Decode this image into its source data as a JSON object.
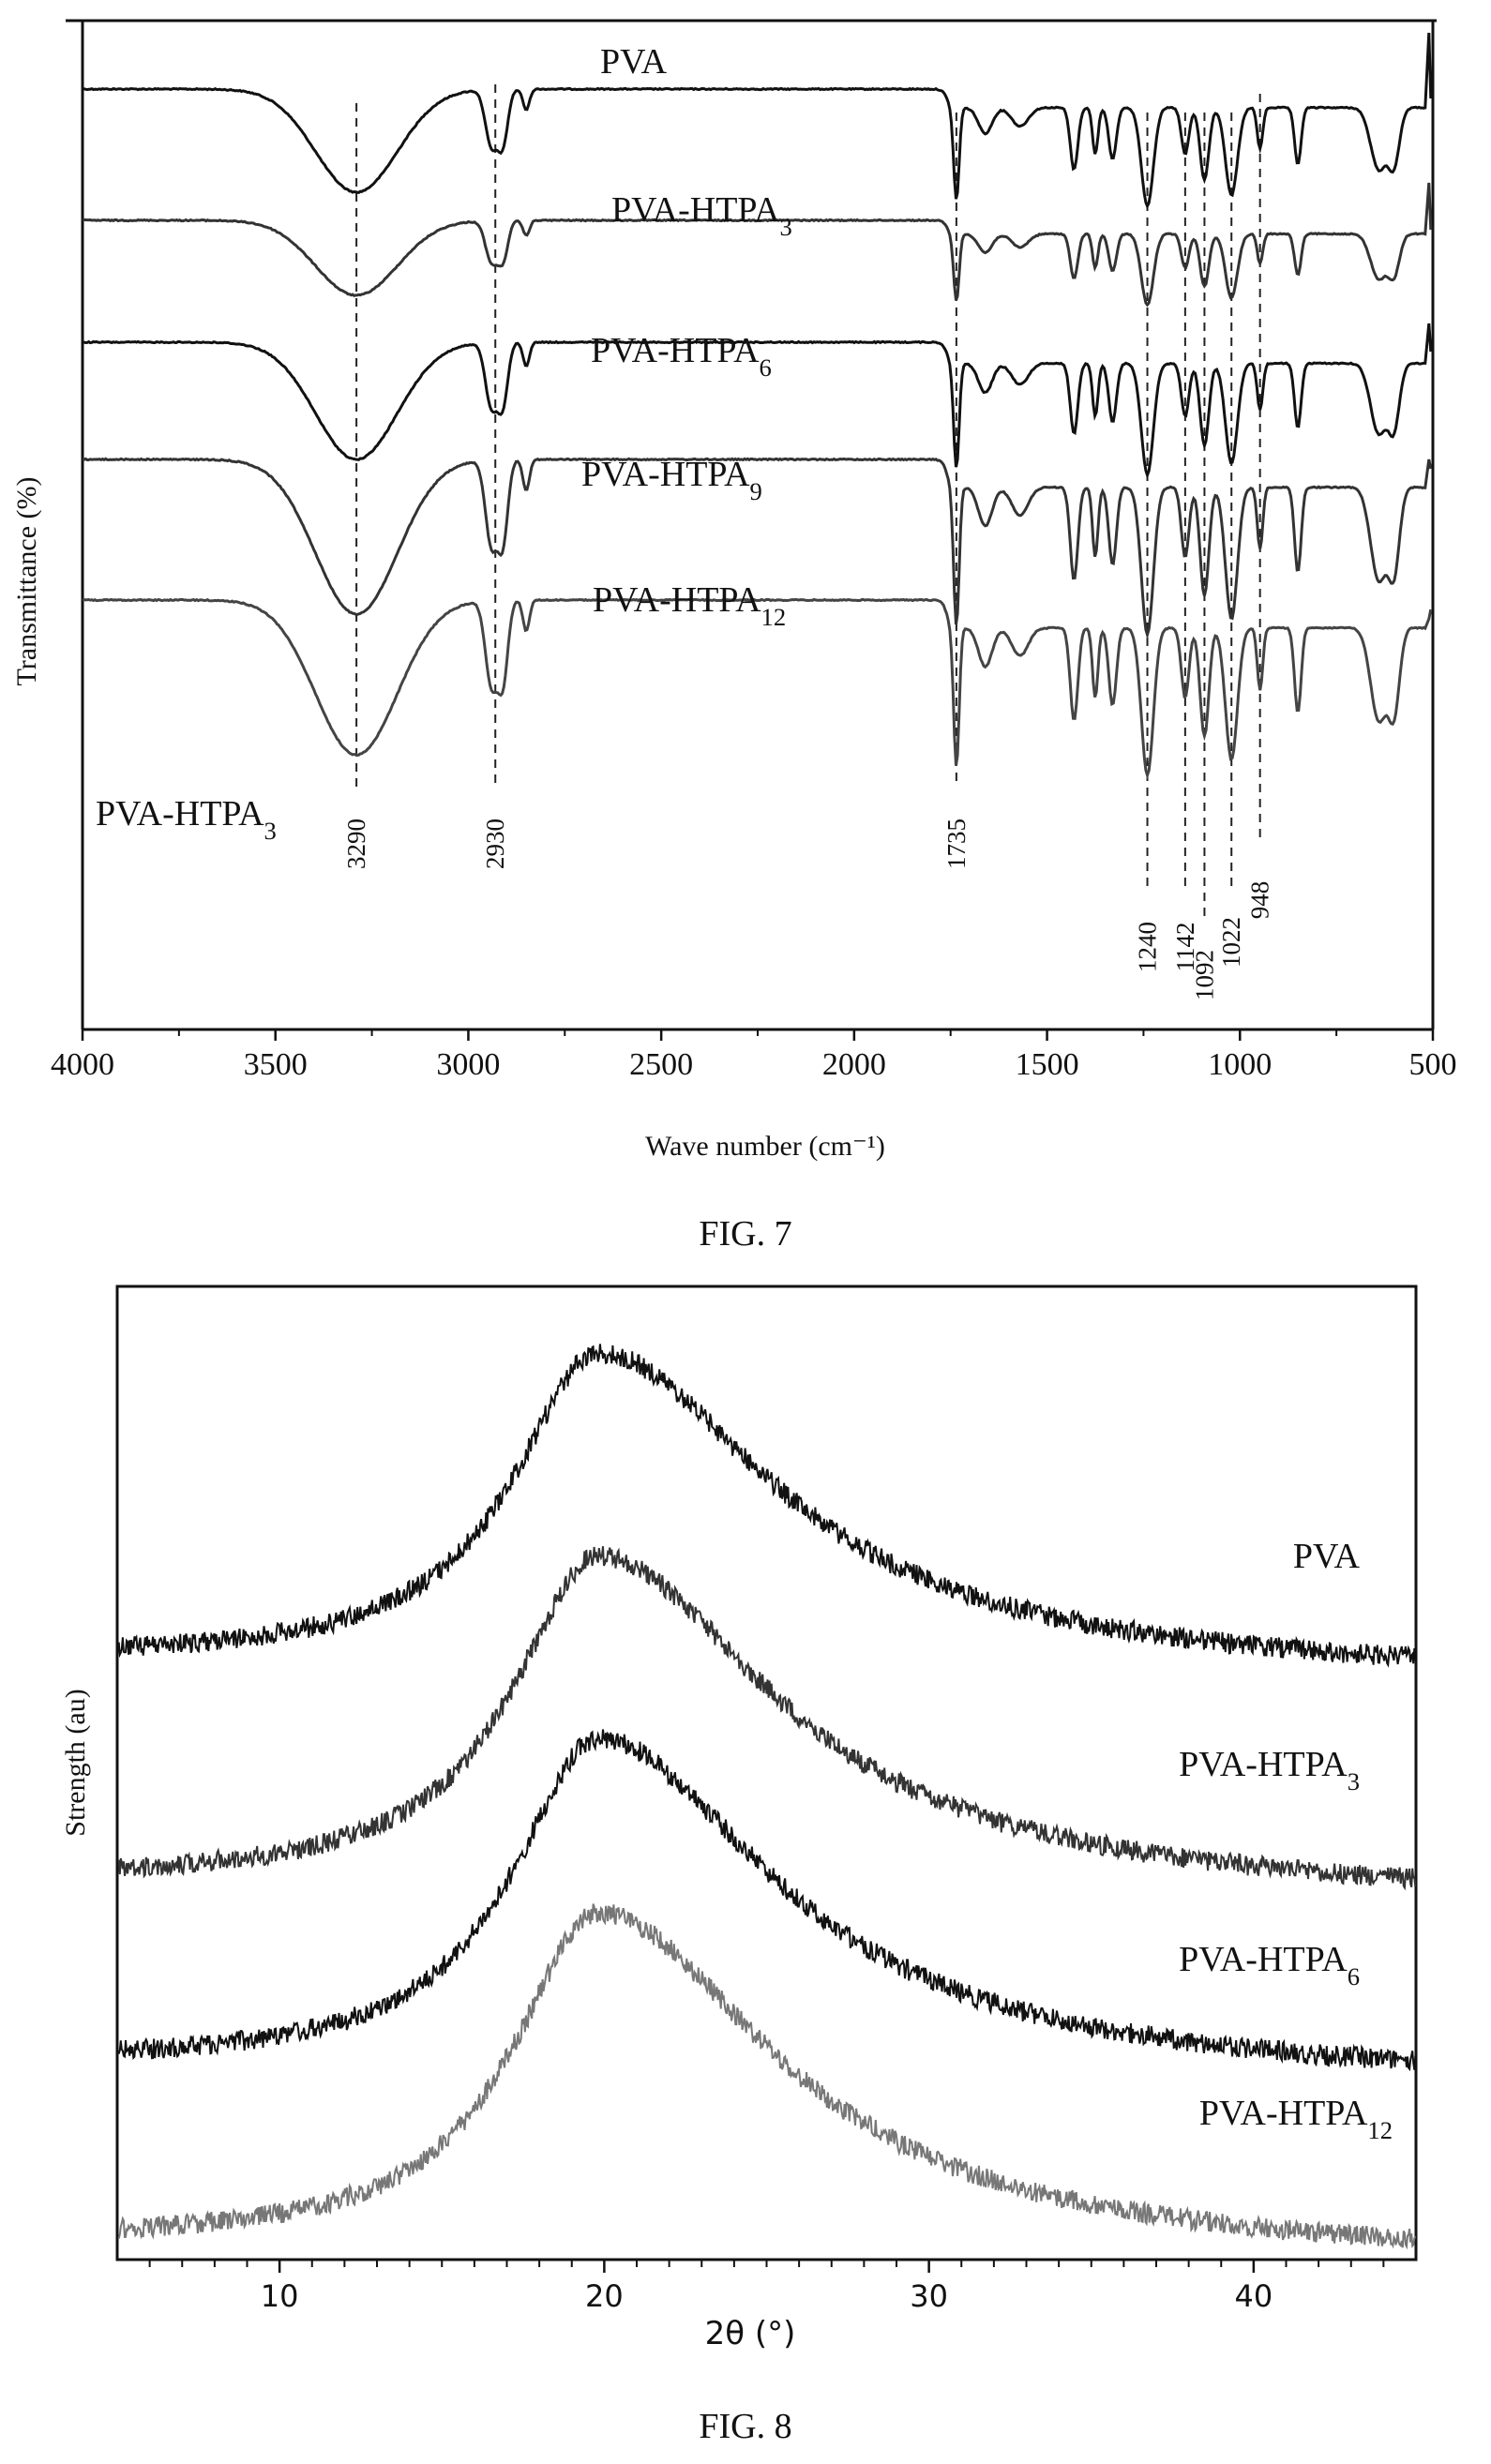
{
  "chart_data": [
    {
      "type": "line",
      "ylabel": "Transmittance (%)",
      "xlabel": "Wave number (cm⁻¹)",
      "xlim": [
        4000,
        500
      ],
      "x_reversed": true,
      "xticks": [
        4000,
        3500,
        3000,
        2500,
        2000,
        1500,
        1000,
        500
      ],
      "y_ticks_shown": false,
      "grid": false,
      "legend": "labels placed next to curves",
      "reference_lines": [
        3290,
        2930,
        1735,
        1240,
        1142,
        1092,
        1022,
        948
      ],
      "reference_labels": [
        "3290",
        "2930",
        "1735",
        "1240",
        "1142",
        "1092",
        "1022",
        "948"
      ],
      "series": [
        {
          "name": "PVA",
          "name_base": "PVA",
          "name_sub": ""
        },
        {
          "name": "PVA-HTPA3",
          "name_base": "PVA-HTPA",
          "name_sub": "3"
        },
        {
          "name": "PVA-HTPA6",
          "name_base": "PVA-HTPA",
          "name_sub": "6"
        },
        {
          "name": "PVA-HTPA9",
          "name_base": "PVA-HTPA",
          "name_sub": "9"
        },
        {
          "name": "PVA-HTPA12",
          "name_base": "PVA-HTPA",
          "name_sub": "12"
        }
      ],
      "bottom_curve_label": {
        "base": "PVA-HTPA",
        "sub": "3"
      },
      "caption": "FIG. 7"
    },
    {
      "type": "line",
      "ylabel": "Strength (au)",
      "xlabel": "2θ  (°)",
      "xlim": [
        5,
        45
      ],
      "xticks": [
        10,
        20,
        30,
        40
      ],
      "y_ticks_shown": false,
      "grid": false,
      "legend": "labels placed next to curves",
      "peak_2theta": 19.8,
      "series": [
        {
          "name": "PVA",
          "name_base": "PVA",
          "name_sub": ""
        },
        {
          "name": "PVA-HTPA3",
          "name_base": "PVA-HTPA",
          "name_sub": "3"
        },
        {
          "name": "PVA-HTPA6",
          "name_base": "PVA-HTPA",
          "name_sub": "6"
        },
        {
          "name": "PVA-HTPA12",
          "name_base": "PVA-HTPA",
          "name_sub": "12"
        }
      ],
      "caption": "FIG. 8"
    }
  ]
}
